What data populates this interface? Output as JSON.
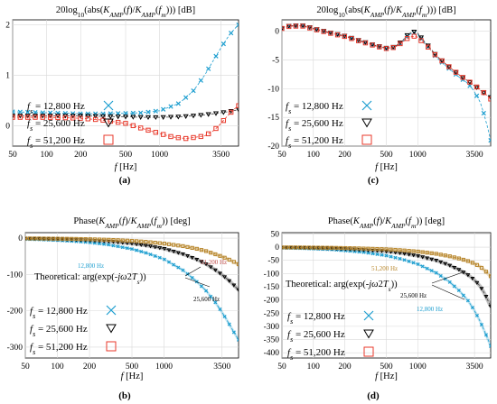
{
  "chart_data": [
    {
      "id": "a",
      "type": "line",
      "letter": "(a)",
      "title": "20log₁₀(abs(K_AMP(f)/K_AMP(f_m))) [dB]",
      "title_parts": {
        "pre": "20log",
        "sub": "10",
        "mid1": "(abs(",
        "k1": "K",
        "k1sub": "AMP",
        "mid2": "(",
        "f1": "f",
        "mid3": ")/",
        "k2": "K",
        "k2sub": "AMP",
        "mid4": "(",
        "f2": "f",
        "f2sub": "m",
        "post": "))) [dB]"
      },
      "xlabel": "f [Hz]",
      "xlabel_parts": {
        "var": "f",
        "unit": " [Hz]"
      },
      "xscale": "log",
      "xlim": [
        50,
        5000
      ],
      "ylim": [
        -0.4,
        2.1
      ],
      "xticks": [
        50,
        100,
        200,
        500,
        1000,
        3500
      ],
      "yticks": [
        0,
        1,
        2
      ],
      "ytick_labels": [
        "0",
        "1",
        "2"
      ],
      "grid": true,
      "legend": {
        "placement": "bottom-left",
        "entries": [
          {
            "label_var": "f",
            "label_sub": "s",
            "label_text": " = 12,800 Hz",
            "marker": "x",
            "color": "#1f9fd0"
          },
          {
            "label_var": "f",
            "label_sub": "s",
            "label_text": " = 25,600 Hz",
            "marker": "triangle-down",
            "color": "#000000"
          },
          {
            "label_var": "f",
            "label_sub": "s",
            "label_text": " = 51,200 Hz",
            "marker": "square",
            "color": "#e8392b"
          }
        ]
      },
      "series": [
        {
          "marker": "x",
          "color": "#1f9fd0",
          "theory": true,
          "x": [
            50,
            70,
            100,
            150,
            200,
            300,
            500,
            700,
            1000,
            1500,
            2000,
            2500,
            3000,
            3500,
            4000,
            4500,
            5000
          ],
          "y": [
            0.28,
            0.27,
            0.26,
            0.25,
            0.24,
            0.24,
            0.25,
            0.26,
            0.3,
            0.45,
            0.7,
            1.0,
            1.3,
            1.55,
            1.75,
            1.9,
            2.0
          ]
        },
        {
          "marker": "triangle-down",
          "color": "#000000",
          "theory": true,
          "x": [
            50,
            70,
            100,
            150,
            200,
            300,
            500,
            700,
            1000,
            1500,
            2000,
            2500,
            3000,
            3500,
            4000,
            4500,
            5000
          ],
          "y": [
            0.2,
            0.2,
            0.2,
            0.2,
            0.2,
            0.19,
            0.18,
            0.17,
            0.17,
            0.18,
            0.2,
            0.22,
            0.24,
            0.26,
            0.28,
            0.3,
            0.32
          ]
        },
        {
          "marker": "square",
          "color": "#e8392b",
          "theory": true,
          "x": [
            50,
            70,
            100,
            150,
            200,
            300,
            500,
            700,
            1000,
            1300,
            1700,
            2000,
            2500,
            3000,
            3500,
            4000,
            4500,
            5000
          ],
          "y": [
            0.17,
            0.17,
            0.17,
            0.16,
            0.15,
            0.12,
            0.05,
            -0.05,
            -0.15,
            -0.22,
            -0.25,
            -0.23,
            -0.2,
            -0.1,
            0.05,
            0.2,
            0.32,
            0.4
          ]
        }
      ]
    },
    {
      "id": "c",
      "type": "line",
      "letter": "(c)",
      "title": "20log₁₀(abs(K_AMP(f)/K_AMP(f_m))) [dB]",
      "title_parts": {
        "pre": "20log",
        "sub": "10",
        "mid1": "(abs(",
        "k1": "K",
        "k1sub": "AMP",
        "mid2": "(",
        "f1": "f",
        "mid3": ")/",
        "k2": "K",
        "k2sub": "AMP",
        "mid4": "(",
        "f2": "f",
        "f2sub": "m",
        "post": "))) [dB]"
      },
      "xlabel": "f [Hz]",
      "xlabel_parts": {
        "var": "f",
        "unit": " [Hz]"
      },
      "xscale": "log",
      "xlim": [
        50,
        5000
      ],
      "ylim": [
        -20,
        2
      ],
      "xticks": [
        50,
        100,
        200,
        500,
        1000,
        3500
      ],
      "yticks": [
        0,
        -5,
        -10,
        -15,
        -20
      ],
      "ytick_labels": [
        "0",
        "-5",
        "-10",
        "-15",
        "-20"
      ],
      "grid": true,
      "legend": {
        "placement": "bottom-left",
        "entries": [
          {
            "label_var": "f",
            "label_sub": "s",
            "label_text": " = 12,800 Hz",
            "marker": "x",
            "color": "#1f9fd0"
          },
          {
            "label_var": "f",
            "label_sub": "s",
            "label_text": " = 25,600 Hz",
            "marker": "triangle-down",
            "color": "#000000"
          },
          {
            "label_var": "f",
            "label_sub": "s",
            "label_text": " = 51,200 Hz",
            "marker": "square",
            "color": "#e8392b"
          }
        ]
      },
      "series": [
        {
          "marker": "x",
          "color": "#1f9fd0",
          "theory": true,
          "x": [
            50,
            60,
            80,
            100,
            150,
            200,
            300,
            400,
            500,
            600,
            700,
            800,
            900,
            1000,
            1100,
            1300,
            1500,
            2000,
            2500,
            3000,
            3500,
            4000,
            4500,
            5000
          ],
          "y": [
            0.5,
            1.0,
            1.0,
            0.5,
            -0.3,
            -0.8,
            -1.8,
            -2.5,
            -3.0,
            -2.8,
            -2.0,
            -0.8,
            -0.2,
            -0.5,
            -1.5,
            -3.0,
            -4.5,
            -6.5,
            -8.0,
            -9.0,
            -10.5,
            -12.5,
            -15.5,
            -19.0
          ]
        },
        {
          "marker": "triangle-down",
          "color": "#000000",
          "theory": true,
          "x": [
            50,
            60,
            80,
            100,
            150,
            200,
            300,
            400,
            500,
            600,
            700,
            800,
            900,
            1000,
            1100,
            1300,
            1500,
            2000,
            2500,
            3000,
            3500,
            4000,
            4500,
            5000
          ],
          "y": [
            0.5,
            1.0,
            1.0,
            0.5,
            -0.3,
            -0.8,
            -1.8,
            -2.5,
            -2.9,
            -2.7,
            -1.8,
            -0.6,
            0.0,
            -0.3,
            -1.3,
            -2.8,
            -4.2,
            -6.2,
            -7.6,
            -8.6,
            -9.5,
            -10.3,
            -11.0,
            -11.5
          ]
        },
        {
          "marker": "square",
          "color": "#e8392b",
          "theory": true,
          "x": [
            50,
            60,
            80,
            100,
            150,
            200,
            300,
            400,
            500,
            600,
            700,
            800,
            900,
            1000,
            1100,
            1300,
            1500,
            2000,
            2500,
            3000,
            3500,
            4000,
            4500,
            5000
          ],
          "y": [
            0.5,
            0.9,
            0.9,
            0.4,
            -0.4,
            -0.9,
            -1.9,
            -2.6,
            -3.0,
            -2.8,
            -2.0,
            -1.2,
            -0.8,
            -1.0,
            -1.8,
            -3.0,
            -4.3,
            -6.2,
            -7.6,
            -8.6,
            -9.4,
            -10.2,
            -11.0,
            -11.8
          ]
        }
      ]
    },
    {
      "id": "b",
      "type": "line",
      "letter": "(b)",
      "title": "Phase(K_AMP(f)/K_AMP(f_m)) [deg]",
      "title_parts": {
        "pre": "Phase(",
        "k1": "K",
        "k1sub": "AMP",
        "mid2": "(",
        "f1": "f",
        "mid3": ")/",
        "k2": "K",
        "k2sub": "AMP",
        "mid4": "(",
        "f2": "f",
        "f2sub": "m",
        "post": ")) [deg]"
      },
      "xlabel": "f [Hz]",
      "xlabel_parts": {
        "var": "f",
        "unit": " [Hz]"
      },
      "xscale": "log",
      "xlim": [
        50,
        5000
      ],
      "ylim": [
        -330,
        15
      ],
      "xticks": [
        50,
        100,
        200,
        500,
        1000,
        3500
      ],
      "yticks": [
        0,
        -100,
        -200,
        -300
      ],
      "ytick_labels": [
        "0",
        "-100",
        "-200",
        "-300"
      ],
      "grid": true,
      "theoretical_label": {
        "pre": "Theoretical: arg(exp(-",
        "j": "j",
        "omega": "ω",
        "mid": "2",
        "T": "T",
        "Tsub": "s",
        "post": "))"
      },
      "annotations": [
        {
          "text": "51,200 Hz",
          "color": "#c0504d"
        },
        {
          "text": "12,800 Hz",
          "color": "#1f9fd0"
        },
        {
          "text": "25,600 Hz",
          "color": "#000000"
        }
      ],
      "legend": {
        "placement": "bottom-left",
        "entries": [
          {
            "label_var": "f",
            "label_sub": "s",
            "label_text": " = 12,800 Hz",
            "marker": "x",
            "color": "#1f9fd0"
          },
          {
            "label_var": "f",
            "label_sub": "s",
            "label_text": " = 25,600 Hz",
            "marker": "triangle-down",
            "color": "#000000"
          },
          {
            "label_var": "f",
            "label_sub": "s",
            "label_text": " = 51,200 Hz",
            "marker": "square",
            "color": "#e8392b"
          }
        ]
      },
      "series": [
        {
          "marker": "x",
          "color": "#1f9fd0",
          "theory": true,
          "dense": true,
          "x": [
            50,
            70,
            100,
            150,
            200,
            300,
            500,
            700,
            1000,
            1500,
            2000,
            2500,
            3000,
            3500,
            4000,
            4500,
            5000
          ],
          "y": [
            -3,
            -4,
            -6,
            -9,
            -12,
            -18,
            -30,
            -42,
            -58,
            -88,
            -118,
            -146,
            -175,
            -204,
            -232,
            -258,
            -280
          ]
        },
        {
          "marker": "triangle-down",
          "color": "#000000",
          "theory": true,
          "dense": true,
          "thick": true,
          "x": [
            50,
            70,
            100,
            150,
            200,
            300,
            500,
            700,
            1000,
            1500,
            2000,
            2500,
            3000,
            3500,
            4000,
            4500,
            5000
          ],
          "y": [
            -1.5,
            -2,
            -3,
            -4.5,
            -6,
            -9,
            -15,
            -21,
            -29,
            -44,
            -58,
            -72,
            -87,
            -101,
            -115,
            -129,
            -143
          ]
        },
        {
          "marker": "square",
          "color": "#b8862b",
          "theory": true,
          "dense": true,
          "thick": true,
          "x": [
            50,
            70,
            100,
            150,
            200,
            300,
            500,
            700,
            1000,
            1500,
            2000,
            2500,
            3000,
            3500,
            4000,
            4500,
            5000
          ],
          "y": [
            -0.8,
            -1,
            -1.5,
            -2.2,
            -3,
            -4.5,
            -7.5,
            -10.5,
            -15,
            -22,
            -29,
            -36,
            -44,
            -51,
            -58,
            -65,
            -72
          ]
        }
      ]
    },
    {
      "id": "d",
      "type": "line",
      "letter": "(d)",
      "title": "Phase(K_AMP(f)/K_AMP(f_m)) [deg]",
      "title_parts": {
        "pre": "Phase(",
        "k1": "K",
        "k1sub": "AMP",
        "mid2": "(",
        "f1": "f",
        "mid3": ")/",
        "k2": "K",
        "k2sub": "AMP",
        "mid4": "(",
        "f2": "f",
        "f2sub": "m",
        "post": ")) [deg]"
      },
      "xlabel": "f [Hz]",
      "xlabel_parts": {
        "var": "f",
        "unit": " [Hz]"
      },
      "xscale": "log",
      "xlim": [
        50,
        5000
      ],
      "ylim": [
        -420,
        55
      ],
      "xticks": [
        50,
        100,
        200,
        500,
        1000,
        3500
      ],
      "yticks": [
        50,
        0,
        -50,
        -100,
        -150,
        -200,
        -250,
        -300,
        -350,
        -400
      ],
      "ytick_labels": [
        "50",
        "0",
        "-50",
        "-100",
        "-150",
        "-200",
        "-250",
        "-300",
        "-350",
        "-400"
      ],
      "grid": true,
      "theoretical_label": {
        "pre": "Theoretical: arg(exp(-",
        "j": "j",
        "omega": "ω",
        "mid": "2",
        "T": "T",
        "Tsub": "s",
        "post": "))"
      },
      "annotations": [
        {
          "text": "51,200 Hz",
          "color": "#b8862b"
        },
        {
          "text": "25,600 Hz",
          "color": "#000000"
        },
        {
          "text": "12,800 Hz",
          "color": "#1f9fd0"
        }
      ],
      "legend": {
        "placement": "bottom-left",
        "entries": [
          {
            "label_var": "f",
            "label_sub": "s",
            "label_text": " = 12,800 Hz",
            "marker": "x",
            "color": "#1f9fd0"
          },
          {
            "label_var": "f",
            "label_sub": "s",
            "label_text": " = 25,600 Hz",
            "marker": "triangle-down",
            "color": "#000000"
          },
          {
            "label_var": "f",
            "label_sub": "s",
            "label_text": " = 51,200 Hz",
            "marker": "square",
            "color": "#e8392b"
          }
        ]
      },
      "series": [
        {
          "marker": "x",
          "color": "#1f9fd0",
          "theory": true,
          "dense": true,
          "x": [
            50,
            70,
            100,
            150,
            200,
            300,
            500,
            700,
            1000,
            1500,
            2000,
            2500,
            3000,
            3500,
            4000,
            4500,
            5000
          ],
          "y": [
            -3,
            -4,
            -6,
            -9,
            -13,
            -19,
            -32,
            -45,
            -64,
            -97,
            -130,
            -165,
            -200,
            -240,
            -285,
            -330,
            -375
          ]
        },
        {
          "marker": "triangle-down",
          "color": "#000000",
          "theory": true,
          "dense": true,
          "thick": true,
          "x": [
            50,
            70,
            100,
            150,
            200,
            300,
            500,
            700,
            1000,
            1500,
            2000,
            2500,
            3000,
            3500,
            4000,
            4500,
            5000
          ],
          "y": [
            -1.5,
            -2,
            -3,
            -4.5,
            -6.5,
            -10,
            -16,
            -23,
            -33,
            -50,
            -68,
            -86,
            -104,
            -124,
            -150,
            -185,
            -225
          ]
        },
        {
          "marker": "square",
          "color": "#b8862b",
          "theory": true,
          "dense": true,
          "thick": true,
          "x": [
            50,
            70,
            100,
            150,
            200,
            300,
            500,
            700,
            1000,
            1500,
            2000,
            2500,
            3000,
            3500,
            4000,
            4500,
            5000
          ],
          "y": [
            -0.8,
            -1,
            -1.5,
            -2.3,
            -3.2,
            -5,
            -8,
            -11.5,
            -16.5,
            -25,
            -34,
            -43,
            -52,
            -62,
            -75,
            -92,
            -110
          ]
        }
      ]
    }
  ]
}
